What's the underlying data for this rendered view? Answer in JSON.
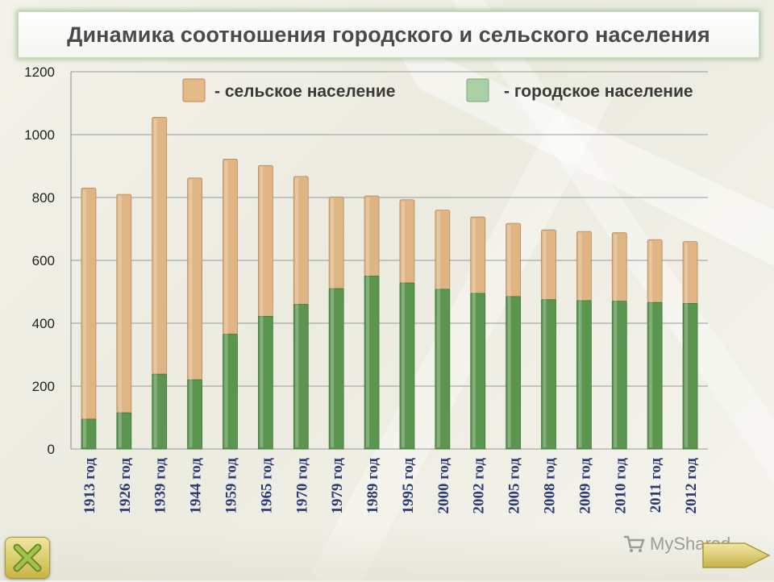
{
  "title": "Динамика соотношения городского и сельского населения",
  "legend": {
    "rural": "- сельское население",
    "urban": "- городское население"
  },
  "colors": {
    "rural": "#deb583",
    "urban": "#5b9550",
    "rural_legend": "#e5b888",
    "urban_legend": "#a8cfa5",
    "grid": "#9a9a9a",
    "xtick": "#2e3b74"
  },
  "watermark": "MyShared",
  "icons": {
    "close": "close-x-icon",
    "next": "arrow-right-icon",
    "watermark": "shopping-cart-icon"
  },
  "chart_data": {
    "type": "bar",
    "stacked": true,
    "categories": [
      "1913 год",
      "1926 год",
      "1939 год",
      "1944 год",
      "1959 год",
      "1965 год",
      "1970 год",
      "1979 год",
      "1989 год",
      "1995 год",
      "2000 год",
      "2002 год",
      "2005 год",
      "2008 год",
      "2009 год",
      "2010 год",
      "2011 год",
      "2012 год"
    ],
    "series": [
      {
        "name": "- городское население",
        "values": [
          95,
          115,
          238,
          220,
          365,
          422,
          460,
          510,
          550,
          528,
          508,
          495,
          485,
          475,
          472,
          470,
          466,
          463
        ]
      },
      {
        "name": "- сельское население",
        "values": [
          735,
          695,
          817,
          642,
          557,
          480,
          407,
          292,
          255,
          265,
          252,
          243,
          233,
          222,
          220,
          218,
          200,
          197
        ]
      }
    ],
    "ylim": [
      0,
      1200
    ],
    "yticks": [
      0,
      200,
      400,
      600,
      800,
      1000,
      1200
    ],
    "grid": true,
    "legend_position": "top"
  }
}
